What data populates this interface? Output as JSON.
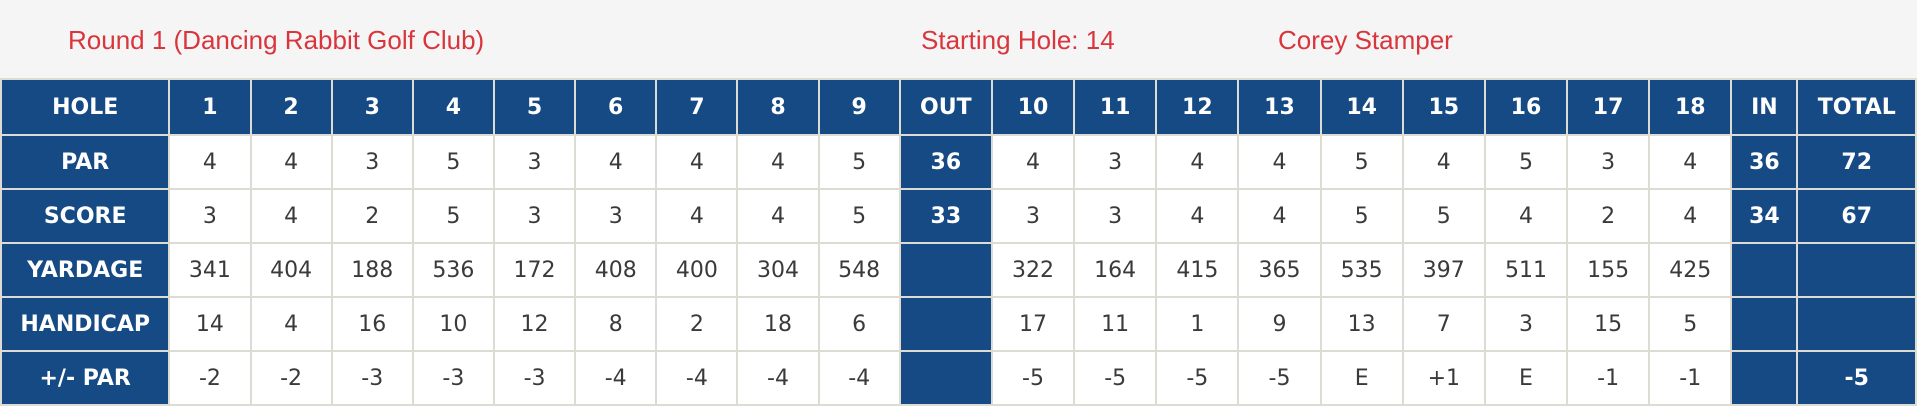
{
  "header": {
    "round": "Round 1 (Dancing Rabbit Golf Club)",
    "starting_hole": "Starting Hole: 14",
    "player": "Corey Stamper"
  },
  "colors": {
    "header_text": "#d9353c",
    "row_header_bg": "#154a85",
    "header_bar_bg": "#f5f5f5"
  },
  "labels": {
    "hole": "HOLE",
    "par": "PAR",
    "score": "SCORE",
    "yardage": "YARDAGE",
    "handicap": "HANDICAP",
    "plus_minus": "+/- PAR"
  },
  "holes_front": [
    "1",
    "2",
    "3",
    "4",
    "5",
    "6",
    "7",
    "8",
    "9"
  ],
  "holes_back": [
    "10",
    "11",
    "12",
    "13",
    "14",
    "15",
    "16",
    "17",
    "18"
  ],
  "out_label": "OUT",
  "in_label": "IN",
  "total_label": "TOTAL",
  "par": {
    "front": [
      "4",
      "4",
      "3",
      "5",
      "3",
      "4",
      "4",
      "4",
      "5"
    ],
    "out": "36",
    "back": [
      "4",
      "3",
      "4",
      "4",
      "5",
      "4",
      "5",
      "3",
      "4"
    ],
    "in": "36",
    "total": "72"
  },
  "score": {
    "front": [
      "3",
      "4",
      "2",
      "5",
      "3",
      "3",
      "4",
      "4",
      "5"
    ],
    "out": "33",
    "back": [
      "3",
      "3",
      "4",
      "4",
      "5",
      "5",
      "4",
      "2",
      "4"
    ],
    "in": "34",
    "total": "67"
  },
  "yardage": {
    "front": [
      "341",
      "404",
      "188",
      "536",
      "172",
      "408",
      "400",
      "304",
      "548"
    ],
    "out": "",
    "back": [
      "322",
      "164",
      "415",
      "365",
      "535",
      "397",
      "511",
      "155",
      "425"
    ],
    "in": "",
    "total": ""
  },
  "handicap": {
    "front": [
      "14",
      "4",
      "16",
      "10",
      "12",
      "8",
      "2",
      "18",
      "6"
    ],
    "out": "",
    "back": [
      "17",
      "11",
      "1",
      "9",
      "13",
      "7",
      "3",
      "15",
      "5"
    ],
    "in": "",
    "total": ""
  },
  "plus_minus": {
    "front": [
      "-2",
      "-2",
      "-3",
      "-3",
      "-3",
      "-4",
      "-4",
      "-4",
      "-4"
    ],
    "out": "",
    "back": [
      "-5",
      "-5",
      "-5",
      "-5",
      "E",
      "+1",
      "E",
      "-1",
      "-1"
    ],
    "in": "",
    "total": "-5"
  }
}
